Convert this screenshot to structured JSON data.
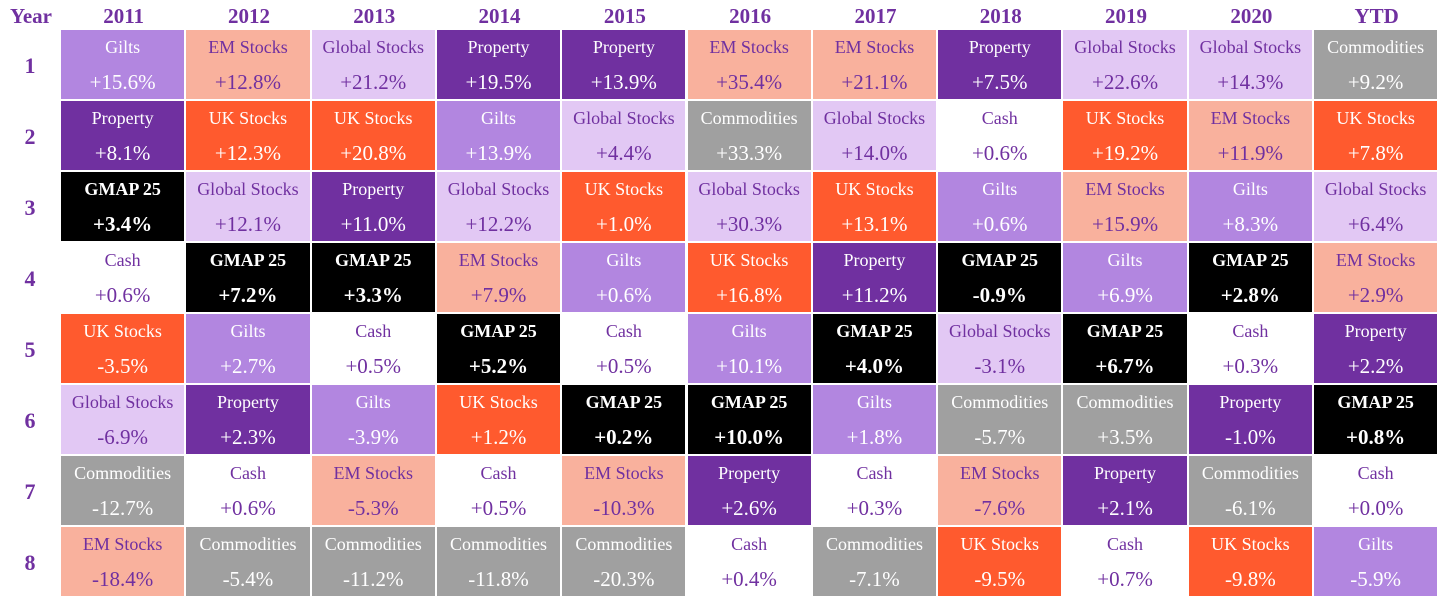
{
  "corner_label": "Year",
  "columns": [
    "2011",
    "2012",
    "2013",
    "2014",
    "2015",
    "2016",
    "2017",
    "2018",
    "2019",
    "2020",
    "YTD"
  ],
  "rows": [
    "1",
    "2",
    "3",
    "4",
    "5",
    "6",
    "7",
    "8"
  ],
  "styles": {
    "Gilts": {
      "bg": "#b286e0",
      "fg": "#ffffff",
      "bold": false
    },
    "EM Stocks": {
      "bg": "#f9b19d",
      "fg": "#7030a0",
      "bold": false
    },
    "Global Stocks": {
      "bg": "#e2c8f4",
      "fg": "#7030a0",
      "bold": false
    },
    "Property": {
      "bg": "#7030a0",
      "fg": "#ffffff",
      "bold": false
    },
    "Commodities": {
      "bg": "#a0a0a0",
      "fg": "#ffffff",
      "bold": false
    },
    "UK Stocks": {
      "bg": "#ff5a2e",
      "fg": "#ffffff",
      "bold": false
    },
    "Cash": {
      "bg": "#ffffff",
      "fg": "#7030a0",
      "bold": false
    },
    "GMAP 25": {
      "bg": "#000000",
      "fg": "#ffffff",
      "bold": true
    }
  },
  "chart_data": {
    "type": "table",
    "title": "",
    "grid": [
      [
        [
          "Gilts",
          "+15.6%"
        ],
        [
          "EM Stocks",
          "+12.8%"
        ],
        [
          "Global Stocks",
          "+21.2%"
        ],
        [
          "Property",
          "+19.5%"
        ],
        [
          "Property",
          "+13.9%"
        ],
        [
          "EM Stocks",
          "+35.4%"
        ],
        [
          "EM Stocks",
          "+21.1%"
        ],
        [
          "Property",
          "+7.5%"
        ],
        [
          "Global Stocks",
          "+22.6%"
        ],
        [
          "Global Stocks",
          "+14.3%"
        ],
        [
          "Commodities",
          "+9.2%"
        ]
      ],
      [
        [
          "Property",
          "+8.1%"
        ],
        [
          "UK Stocks",
          "+12.3%"
        ],
        [
          "UK Stocks",
          "+20.8%"
        ],
        [
          "Gilts",
          "+13.9%"
        ],
        [
          "Global Stocks",
          "+4.4%"
        ],
        [
          "Commodities",
          "+33.3%"
        ],
        [
          "Global Stocks",
          "+14.0%"
        ],
        [
          "Cash",
          "+0.6%"
        ],
        [
          "UK Stocks",
          "+19.2%"
        ],
        [
          "EM Stocks",
          "+11.9%"
        ],
        [
          "UK Stocks",
          "+7.8%"
        ]
      ],
      [
        [
          "GMAP 25",
          "+3.4%"
        ],
        [
          "Global Stocks",
          "+12.1%"
        ],
        [
          "Property",
          "+11.0%"
        ],
        [
          "Global Stocks",
          "+12.2%"
        ],
        [
          "UK Stocks",
          "+1.0%"
        ],
        [
          "Global Stocks",
          "+30.3%"
        ],
        [
          "UK Stocks",
          "+13.1%"
        ],
        [
          "Gilts",
          "+0.6%"
        ],
        [
          "EM Stocks",
          "+15.9%"
        ],
        [
          "Gilts",
          "+8.3%"
        ],
        [
          "Global Stocks",
          "+6.4%"
        ]
      ],
      [
        [
          "Cash",
          "+0.6%"
        ],
        [
          "GMAP 25",
          "+7.2%"
        ],
        [
          "GMAP 25",
          "+3.3%"
        ],
        [
          "EM Stocks",
          "+7.9%"
        ],
        [
          "Gilts",
          "+0.6%"
        ],
        [
          "UK Stocks",
          "+16.8%"
        ],
        [
          "Property",
          "+11.2%"
        ],
        [
          "GMAP 25",
          "-0.9%"
        ],
        [
          "Gilts",
          "+6.9%"
        ],
        [
          "GMAP 25",
          "+2.8%"
        ],
        [
          "EM Stocks",
          "+2.9%"
        ]
      ],
      [
        [
          "UK Stocks",
          "-3.5%"
        ],
        [
          "Gilts",
          "+2.7%"
        ],
        [
          "Cash",
          "+0.5%"
        ],
        [
          "GMAP 25",
          "+5.2%"
        ],
        [
          "Cash",
          "+0.5%"
        ],
        [
          "Gilts",
          "+10.1%"
        ],
        [
          "GMAP 25",
          "+4.0%"
        ],
        [
          "Global Stocks",
          "-3.1%"
        ],
        [
          "GMAP 25",
          "+6.7%"
        ],
        [
          "Cash",
          "+0.3%"
        ],
        [
          "Property",
          "+2.2%"
        ]
      ],
      [
        [
          "Global Stocks",
          "-6.9%"
        ],
        [
          "Property",
          "+2.3%"
        ],
        [
          "Gilts",
          "-3.9%"
        ],
        [
          "UK Stocks",
          "+1.2%"
        ],
        [
          "GMAP 25",
          "+0.2%"
        ],
        [
          "GMAP 25",
          "+10.0%"
        ],
        [
          "Gilts",
          "+1.8%"
        ],
        [
          "Commodities",
          "-5.7%"
        ],
        [
          "Commodities",
          "+3.5%"
        ],
        [
          "Property",
          "-1.0%"
        ],
        [
          "GMAP 25",
          "+0.8%"
        ]
      ],
      [
        [
          "Commodities",
          "-12.7%"
        ],
        [
          "Cash",
          "+0.6%"
        ],
        [
          "EM Stocks",
          "-5.3%"
        ],
        [
          "Cash",
          "+0.5%"
        ],
        [
          "EM Stocks",
          "-10.3%"
        ],
        [
          "Property",
          "+2.6%"
        ],
        [
          "Cash",
          "+0.3%"
        ],
        [
          "EM Stocks",
          "-7.6%"
        ],
        [
          "Property",
          "+2.1%"
        ],
        [
          "Commodities",
          "-6.1%"
        ],
        [
          "Cash",
          "+0.0%"
        ]
      ],
      [
        [
          "EM Stocks",
          "-18.4%"
        ],
        [
          "Commodities",
          "-5.4%"
        ],
        [
          "Commodities",
          "-11.2%"
        ],
        [
          "Commodities",
          "-11.8%"
        ],
        [
          "Commodities",
          "-20.3%"
        ],
        [
          "Cash",
          "+0.4%"
        ],
        [
          "Commodities",
          "-7.1%"
        ],
        [
          "UK Stocks",
          "-9.5%"
        ],
        [
          "Cash",
          "+0.7%"
        ],
        [
          "UK Stocks",
          "-9.8%"
        ],
        [
          "Gilts",
          "-5.9%"
        ]
      ]
    ]
  }
}
